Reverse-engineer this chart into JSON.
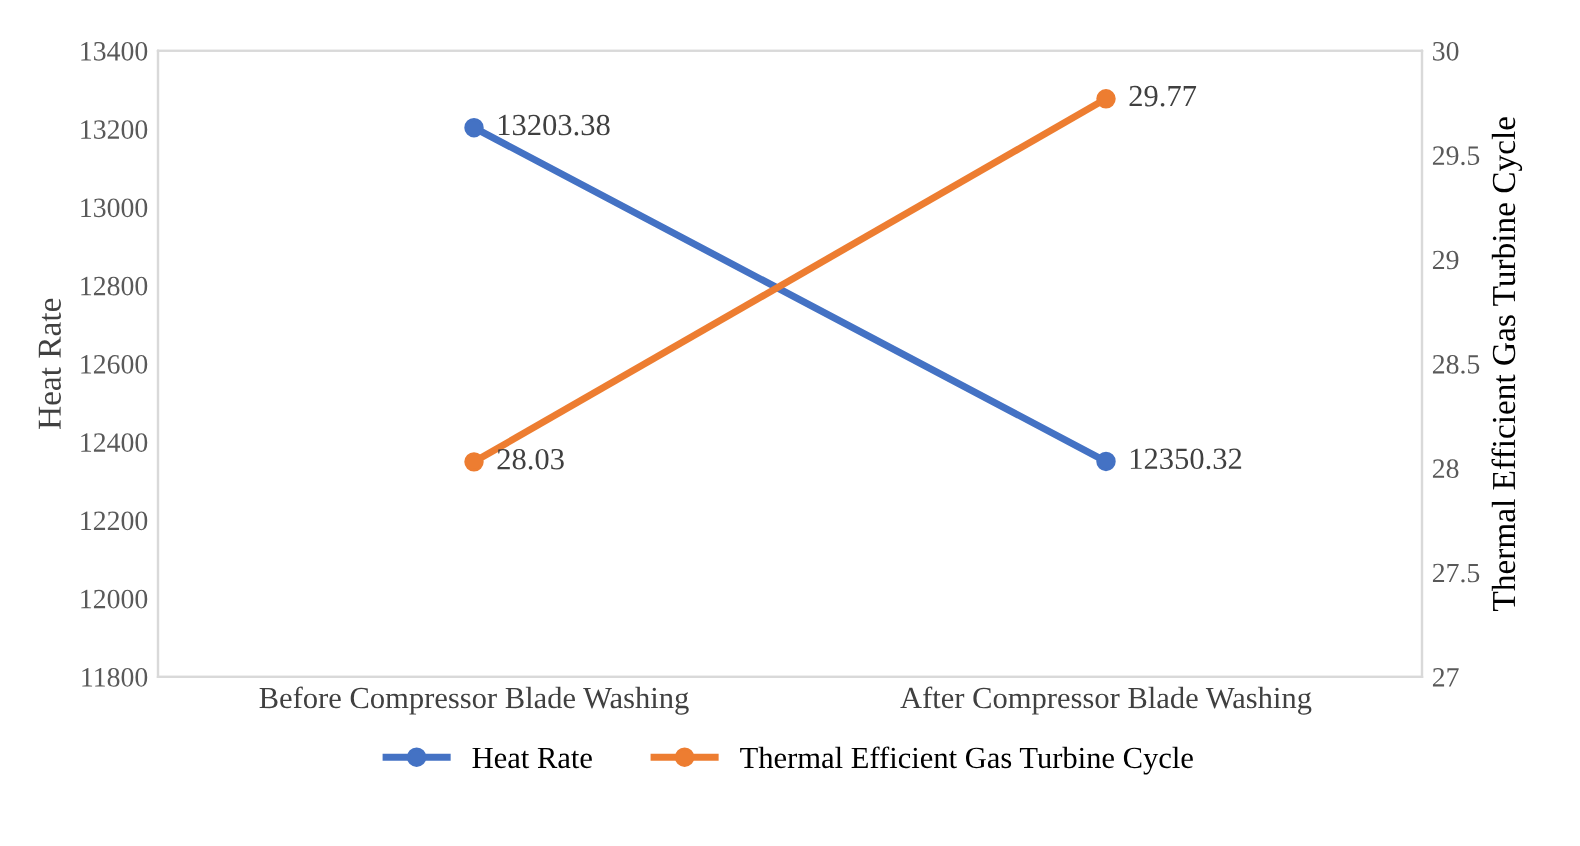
{
  "chart_data": {
    "type": "line",
    "ylabel": "Heat Rate",
    "y2label": "Thermal Efficient Gas Turbine Cycle",
    "categories": [
      "Before Compressor Blade Washing",
      "After Compressor Blade Washing"
    ],
    "series": [
      {
        "name": "Heat Rate",
        "color": "#4472c4",
        "values": [
          13203.38,
          12350.32
        ]
      },
      {
        "name": "Thermal Efficient Gas Turbine Cycle",
        "color": "#ed7d31",
        "values": [
          28.03,
          29.77
        ],
        "axis": "y2"
      }
    ],
    "ylim": [
      11800,
      13400
    ],
    "yticks": [
      11800,
      12000,
      12200,
      12400,
      12600,
      12800,
      13000,
      13200,
      13400
    ],
    "y2lim": [
      27,
      30
    ],
    "y2ticks": [
      27,
      27.5,
      28,
      28.5,
      29,
      29.5,
      30
    ],
    "data_labels": true,
    "legend": "bottom",
    "marker": "circle",
    "line_style": "solid",
    "grid": false
  }
}
